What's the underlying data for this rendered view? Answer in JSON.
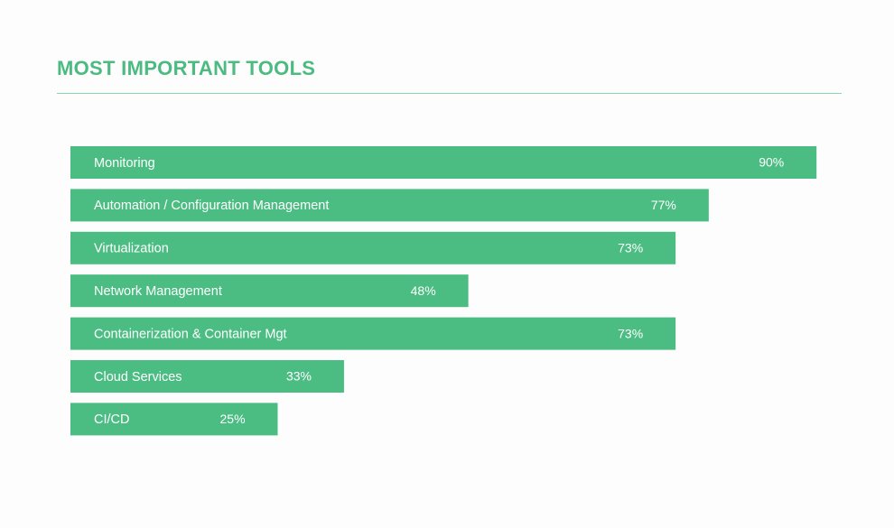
{
  "chart_data": {
    "type": "bar",
    "orientation": "horizontal",
    "title": "MOST IMPORTANT TOOLS",
    "categories": [
      "Monitoring",
      "Automation / Configuration Management",
      "Virtualization",
      "Network Management",
      "Containerization & Container Mgt",
      "Cloud Services",
      "CI/CD"
    ],
    "values": [
      90,
      77,
      73,
      48,
      73,
      33,
      25
    ],
    "value_labels": [
      "90%",
      "77%",
      "73%",
      "48%",
      "73%",
      "33%",
      "25%"
    ],
    "color": "#4bbd83"
  }
}
